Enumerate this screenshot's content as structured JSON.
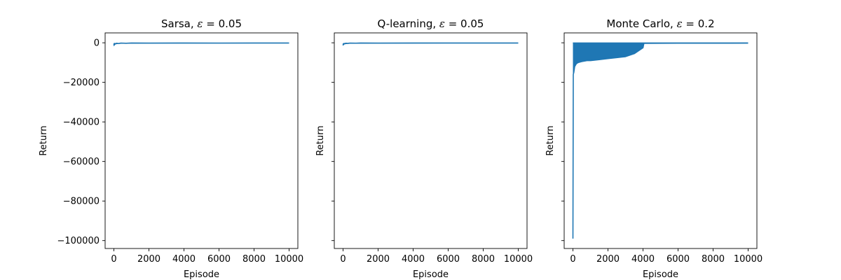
{
  "chart_data": [
    {
      "type": "line",
      "title_prefix": "Sarsa, ",
      "title_symbol": "ε",
      "title_suffix": " = 0.05",
      "xlabel": "Episode",
      "ylabel": "Return",
      "xlim": [
        -500,
        10500
      ],
      "ylim": [
        -104000,
        5000
      ],
      "xticks": [
        0,
        2000,
        4000,
        6000,
        8000,
        10000
      ],
      "yticks": [
        0,
        -20000,
        -40000,
        -60000,
        -80000,
        -100000
      ],
      "ytick_labels": [
        "0",
        "−20000",
        "−40000",
        "−60000",
        "−80000",
        "−100000"
      ],
      "show_ytick_labels": true,
      "grid": false,
      "color": "#1f77b4",
      "series": [
        {
          "x": [
            0,
            10,
            30,
            60,
            100,
            150,
            250,
            400,
            700,
            1000,
            2000,
            4000,
            6000,
            8000,
            10000
          ],
          "y": [
            -1500,
            -400,
            -1100,
            -300,
            -600,
            -200,
            -350,
            -150,
            -250,
            -120,
            -150,
            -100,
            -130,
            -100,
            -110
          ],
          "y_low": [
            -2200,
            -1400,
            -1200,
            -900,
            -800,
            -650,
            -600,
            -500,
            -450,
            -420,
            -400,
            -380,
            -380,
            -360,
            -350
          ]
        }
      ]
    },
    {
      "type": "line",
      "title_prefix": "Q-learning, ",
      "title_symbol": "ε",
      "title_suffix": " = 0.05",
      "xlabel": "Episode",
      "ylabel": "Return",
      "xlim": [
        -500,
        10500
      ],
      "ylim": [
        -104000,
        5000
      ],
      "xticks": [
        0,
        2000,
        4000,
        6000,
        8000,
        10000
      ],
      "yticks": [
        0,
        -20000,
        -40000,
        -60000,
        -80000,
        -100000
      ],
      "ytick_labels": [
        "0",
        "−20000",
        "−40000",
        "−60000",
        "−80000",
        "−100000"
      ],
      "show_ytick_labels": false,
      "grid": false,
      "color": "#1f77b4",
      "series": [
        {
          "x": [
            0,
            10,
            30,
            60,
            100,
            150,
            250,
            400,
            700,
            1000,
            2000,
            4000,
            6000,
            8000,
            10000
          ],
          "y": [
            -1300,
            -500,
            -900,
            -300,
            -500,
            -200,
            -300,
            -150,
            -200,
            -120,
            -140,
            -100,
            -120,
            -100,
            -110
          ],
          "y_low": [
            -1900,
            -1300,
            -1100,
            -850,
            -750,
            -650,
            -580,
            -500,
            -450,
            -420,
            -400,
            -380,
            -370,
            -360,
            -350
          ]
        }
      ]
    },
    {
      "type": "line",
      "title_prefix": "Monte Carlo, ",
      "title_symbol": "ε",
      "title_suffix": " = 0.2",
      "xlabel": "Episode",
      "ylabel": "Return",
      "xlim": [
        -500,
        10500
      ],
      "ylim": [
        -104000,
        5000
      ],
      "xticks": [
        0,
        2000,
        4000,
        6000,
        8000,
        10000
      ],
      "yticks": [
        0,
        -20000,
        -40000,
        -60000,
        -80000,
        -100000
      ],
      "ytick_labels": [
        "0",
        "−20000",
        "−40000",
        "−60000",
        "−80000",
        "−100000"
      ],
      "show_ytick_labels": false,
      "grid": false,
      "color": "#1f77b4",
      "series": [
        {
          "x": [
            0,
            20,
            50,
            100,
            200,
            300,
            500,
            800,
            1000,
            1500,
            2000,
            2500,
            3000,
            3500,
            4000,
            4050,
            5000,
            6000,
            7000,
            8000,
            9000,
            10000
          ],
          "y": [
            -99000,
            -16000,
            -15000,
            -12000,
            -10500,
            -10000,
            -9500,
            -9000,
            -9000,
            -8500,
            -8000,
            -7500,
            -7000,
            -5500,
            -2500,
            -300,
            -250,
            -200,
            -200,
            -180,
            -180,
            -170
          ],
          "y_high": [
            -200,
            -100,
            -100,
            -100,
            -100,
            -100,
            -100,
            -100,
            -100,
            -100,
            -100,
            -100,
            -100,
            -100,
            -100,
            -100,
            -100,
            -100,
            -100,
            -100,
            -100,
            -100
          ]
        }
      ]
    }
  ]
}
